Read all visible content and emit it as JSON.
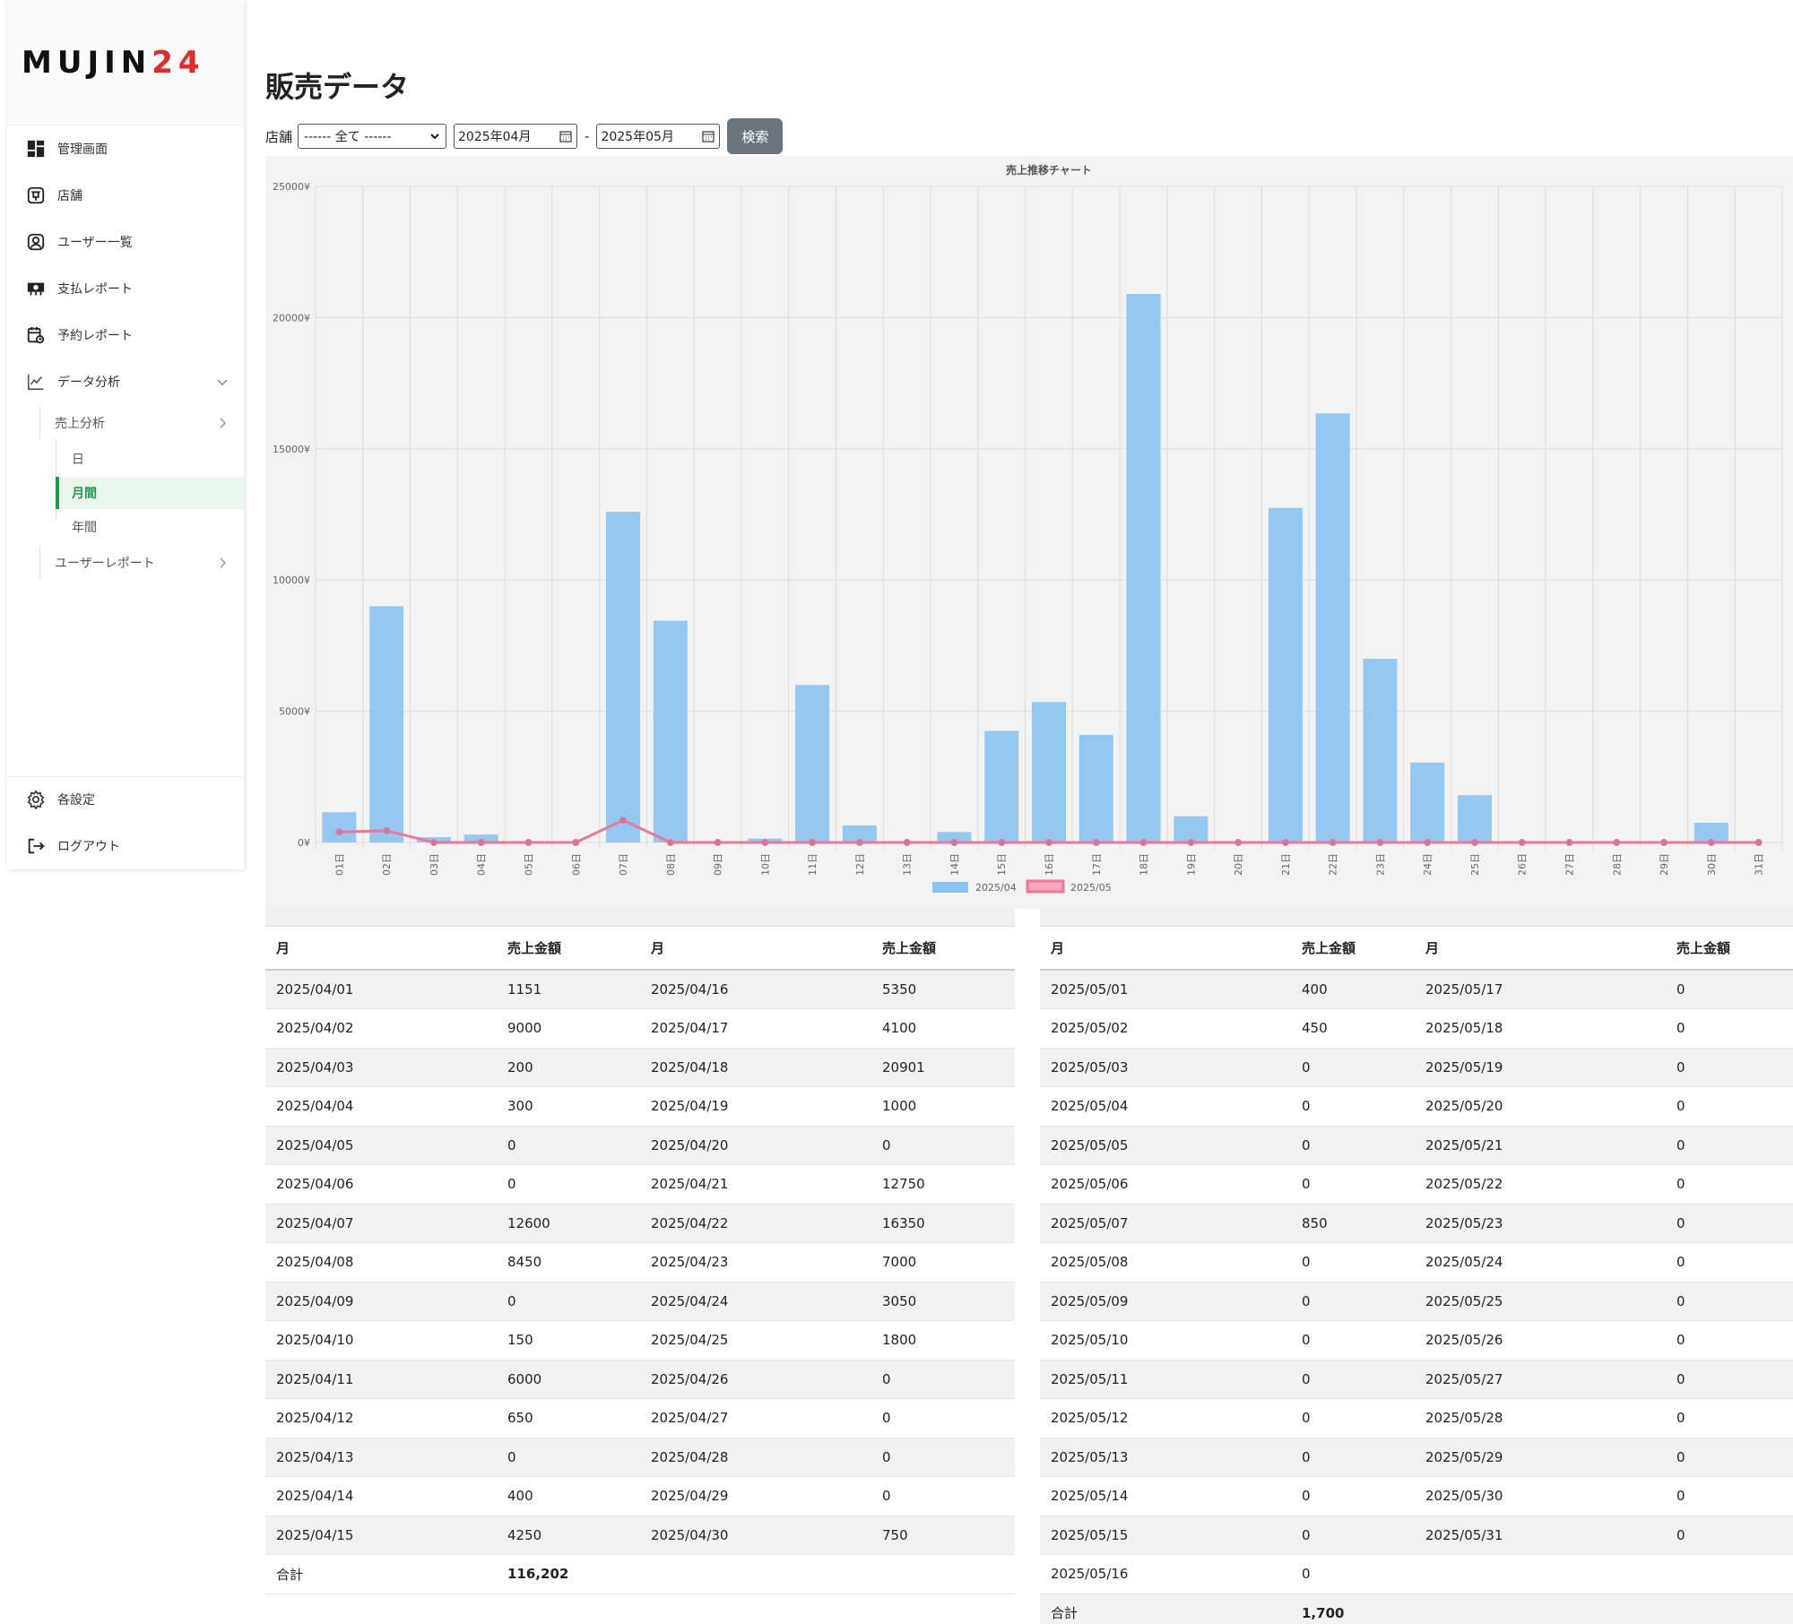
{
  "sidebar": {
    "logo_main": "MUJIN",
    "logo_num": "24",
    "items": [
      {
        "label": "管理画面",
        "icon": "dashboard-icon"
      },
      {
        "label": "店舗",
        "icon": "store-icon"
      },
      {
        "label": "ユーザー一覧",
        "icon": "user-icon"
      },
      {
        "label": "支払レポート",
        "icon": "payment-icon"
      },
      {
        "label": "予約レポート",
        "icon": "reservation-icon"
      },
      {
        "label": "データ分析",
        "icon": "chart-line-icon"
      }
    ],
    "sub": {
      "sales": "売上分析",
      "day": "日",
      "month": "月間",
      "year": "年間",
      "user_report": "ユーザーレポート"
    },
    "settings": "各設定",
    "logout": "ログアウト"
  },
  "page": {
    "title": "販売データ",
    "store_label": "店舗",
    "store_value": "------ 全て ------",
    "from_month": "2025年04月",
    "dash": "-",
    "to_month": "2025年05月",
    "search": "検索"
  },
  "chart_data": {
    "type": "bar",
    "title": "売上推移チャート",
    "categories": [
      "01日",
      "02日",
      "03日",
      "04日",
      "05日",
      "06日",
      "07日",
      "08日",
      "09日",
      "10日",
      "11日",
      "12日",
      "13日",
      "14日",
      "15日",
      "16日",
      "17日",
      "18日",
      "19日",
      "20日",
      "21日",
      "22日",
      "23日",
      "24日",
      "25日",
      "26日",
      "27日",
      "28日",
      "29日",
      "30日",
      "31日"
    ],
    "yticks": [
      "0¥",
      "5000¥",
      "10000¥",
      "15000¥",
      "20000¥",
      "25000¥"
    ],
    "ylim": [
      0,
      25000
    ],
    "series": [
      {
        "name": "2025/04",
        "type": "bar",
        "color": "#8ec5ef",
        "values": [
          1151,
          9000,
          200,
          300,
          0,
          0,
          12600,
          8450,
          0,
          150,
          6000,
          650,
          0,
          400,
          4250,
          5350,
          4100,
          20901,
          1000,
          0,
          12750,
          16350,
          7000,
          3050,
          1800,
          0,
          0,
          0,
          0,
          750,
          0
        ]
      },
      {
        "name": "2025/05",
        "type": "line",
        "color": "#e8799a",
        "values": [
          400,
          450,
          0,
          0,
          0,
          0,
          850,
          0,
          0,
          0,
          0,
          0,
          0,
          0,
          0,
          0,
          0,
          0,
          0,
          0,
          0,
          0,
          0,
          0,
          0,
          0,
          0,
          0,
          0,
          0,
          0
        ]
      }
    ],
    "grid": true,
    "legend": "bottom"
  },
  "tables": {
    "header_date": "月",
    "header_amount": "売上金額",
    "total_label": "合計",
    "april": {
      "left": [
        [
          "2025/04/01",
          "1151"
        ],
        [
          "2025/04/02",
          "9000"
        ],
        [
          "2025/04/03",
          "200"
        ],
        [
          "2025/04/04",
          "300"
        ],
        [
          "2025/04/05",
          "0"
        ],
        [
          "2025/04/06",
          "0"
        ],
        [
          "2025/04/07",
          "12600"
        ],
        [
          "2025/04/08",
          "8450"
        ],
        [
          "2025/04/09",
          "0"
        ],
        [
          "2025/04/10",
          "150"
        ],
        [
          "2025/04/11",
          "6000"
        ],
        [
          "2025/04/12",
          "650"
        ],
        [
          "2025/04/13",
          "0"
        ],
        [
          "2025/04/14",
          "400"
        ],
        [
          "2025/04/15",
          "4250"
        ]
      ],
      "right": [
        [
          "2025/04/16",
          "5350"
        ],
        [
          "2025/04/17",
          "4100"
        ],
        [
          "2025/04/18",
          "20901"
        ],
        [
          "2025/04/19",
          "1000"
        ],
        [
          "2025/04/20",
          "0"
        ],
        [
          "2025/04/21",
          "12750"
        ],
        [
          "2025/04/22",
          "16350"
        ],
        [
          "2025/04/23",
          "7000"
        ],
        [
          "2025/04/24",
          "3050"
        ],
        [
          "2025/04/25",
          "1800"
        ],
        [
          "2025/04/26",
          "0"
        ],
        [
          "2025/04/27",
          "0"
        ],
        [
          "2025/04/28",
          "0"
        ],
        [
          "2025/04/29",
          "0"
        ],
        [
          "2025/04/30",
          "750"
        ]
      ],
      "total": "116,202"
    },
    "may": {
      "left": [
        [
          "2025/05/01",
          "400"
        ],
        [
          "2025/05/02",
          "450"
        ],
        [
          "2025/05/03",
          "0"
        ],
        [
          "2025/05/04",
          "0"
        ],
        [
          "2025/05/05",
          "0"
        ],
        [
          "2025/05/06",
          "0"
        ],
        [
          "2025/05/07",
          "850"
        ],
        [
          "2025/05/08",
          "0"
        ],
        [
          "2025/05/09",
          "0"
        ],
        [
          "2025/05/10",
          "0"
        ],
        [
          "2025/05/11",
          "0"
        ],
        [
          "2025/05/12",
          "0"
        ],
        [
          "2025/05/13",
          "0"
        ],
        [
          "2025/05/14",
          "0"
        ],
        [
          "2025/05/15",
          "0"
        ],
        [
          "2025/05/16",
          "0"
        ]
      ],
      "right": [
        [
          "2025/05/17",
          "0"
        ],
        [
          "2025/05/18",
          "0"
        ],
        [
          "2025/05/19",
          "0"
        ],
        [
          "2025/05/20",
          "0"
        ],
        [
          "2025/05/21",
          "0"
        ],
        [
          "2025/05/22",
          "0"
        ],
        [
          "2025/05/23",
          "0"
        ],
        [
          "2025/05/24",
          "0"
        ],
        [
          "2025/05/25",
          "0"
        ],
        [
          "2025/05/26",
          "0"
        ],
        [
          "2025/05/27",
          "0"
        ],
        [
          "2025/05/28",
          "0"
        ],
        [
          "2025/05/29",
          "0"
        ],
        [
          "2025/05/30",
          "0"
        ],
        [
          "2025/05/31",
          "0"
        ]
      ],
      "total": "1,700"
    }
  }
}
